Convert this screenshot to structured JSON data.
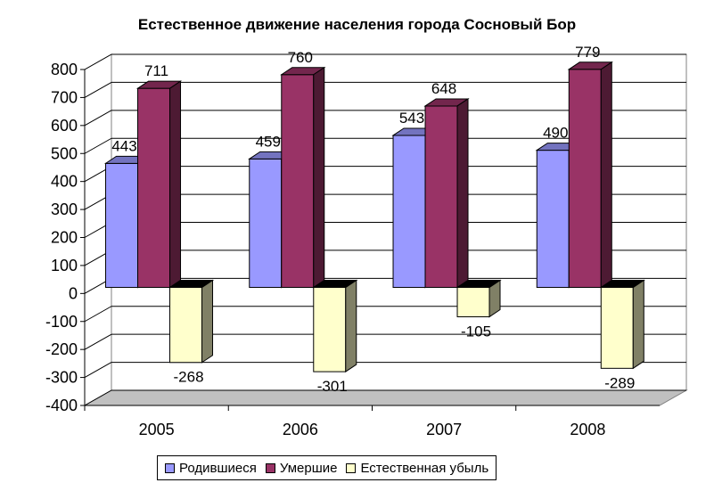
{
  "chart_data": {
    "type": "bar",
    "title": "Естественное движение населения города Сосновый Бор",
    "categories": [
      "2005",
      "2006",
      "2007",
      "2008"
    ],
    "series": [
      {
        "name": "Родившиеся",
        "values": [
          443,
          459,
          543,
          490
        ],
        "color": "#9999ff"
      },
      {
        "name": "Умершие",
        "values": [
          711,
          760,
          648,
          779
        ],
        "color": "#993366"
      },
      {
        "name": "Естественная убыль",
        "values": [
          -268,
          -301,
          -105,
          -289
        ],
        "color": "#ffffcc"
      }
    ],
    "ylim": [
      -400,
      800
    ],
    "yticks": [
      "800",
      "700",
      "600",
      "500",
      "400",
      "300",
      "200",
      "100",
      "0",
      "-100",
      "-200",
      "-300",
      "-400"
    ],
    "grid": true,
    "legend_position": "bottom"
  }
}
